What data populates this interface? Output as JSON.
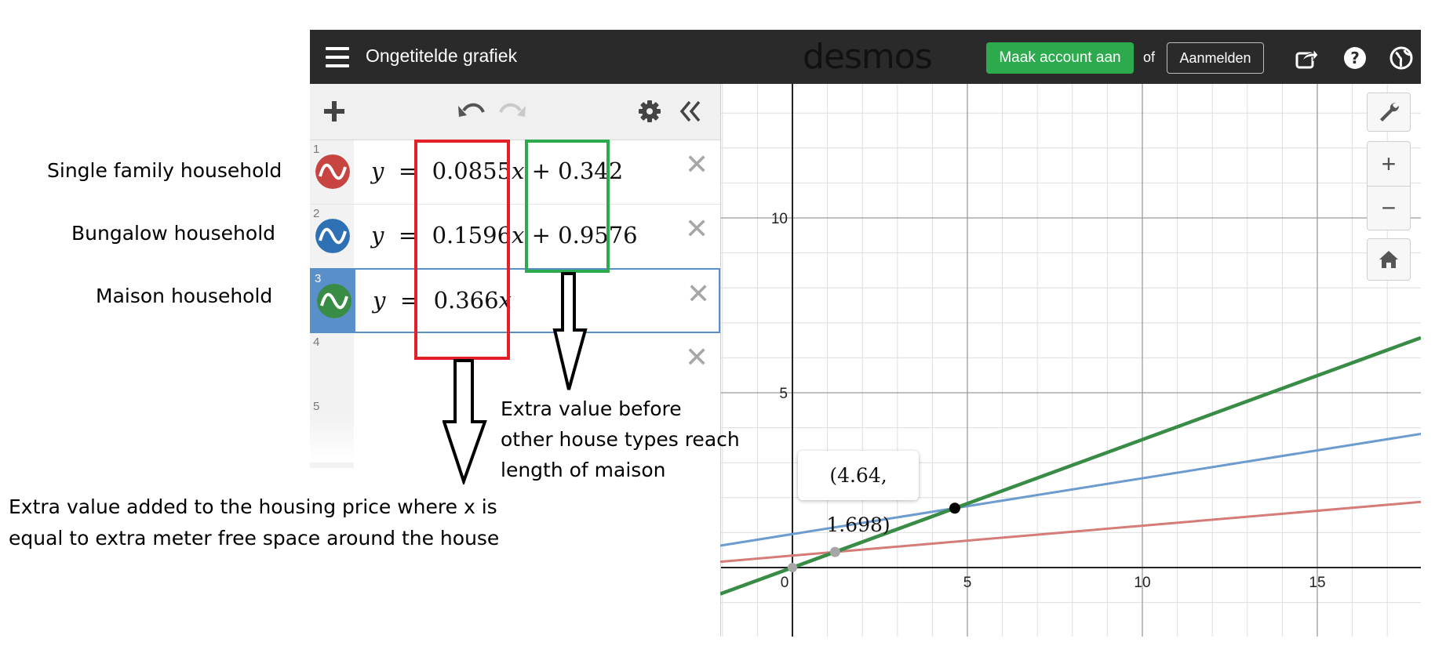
{
  "annotations": {
    "row1_label": "Single family household",
    "row2_label": "Bungalow household",
    "row3_label": "Maison household",
    "green_note": [
      "Extra value before",
      "other house types reach",
      "length of maison"
    ],
    "red_note": [
      "Extra value added to the housing price where x is",
      "equal to extra meter free space around the house"
    ]
  },
  "header": {
    "title": "Ongetitelde grafiek",
    "logo": "desmos",
    "create_account": "Maak account aan",
    "or": "of",
    "login": "Aanmelden"
  },
  "expressions": [
    {
      "num": "1",
      "color": "#c74440",
      "lhs": "y",
      "slope": "0.0855",
      "var": "x",
      "plus": "+",
      "intercept": "0.342"
    },
    {
      "num": "2",
      "color": "#2d70b3",
      "lhs": "y",
      "slope": "0.1596",
      "var": "x",
      "plus": "+",
      "intercept": "0.9576"
    },
    {
      "num": "3",
      "color": "#388c46",
      "lhs": "y",
      "slope": "0.366",
      "var": "x",
      "plus": "",
      "intercept": ""
    },
    {
      "num": "4"
    },
    {
      "num": "5"
    }
  ],
  "graph": {
    "x_ticks": [
      "0",
      "5",
      "10",
      "15"
    ],
    "y_ticks": [
      "5",
      "10"
    ],
    "intersection_label": "(4.64, 1.698)",
    "intersection": [
      4.64,
      1.698
    ],
    "line_colors": {
      "single": "#d57b78",
      "bungalow": "#6c9bcf",
      "maison": "#388c46"
    }
  },
  "icons": [
    "menu-icon",
    "share-icon",
    "help-icon",
    "globe-icon",
    "add-icon",
    "undo-icon",
    "redo-icon",
    "settings-icon",
    "collapse-icon",
    "wrench-icon",
    "zoom-in-icon",
    "zoom-out-icon",
    "home-icon",
    "close-icon"
  ]
}
